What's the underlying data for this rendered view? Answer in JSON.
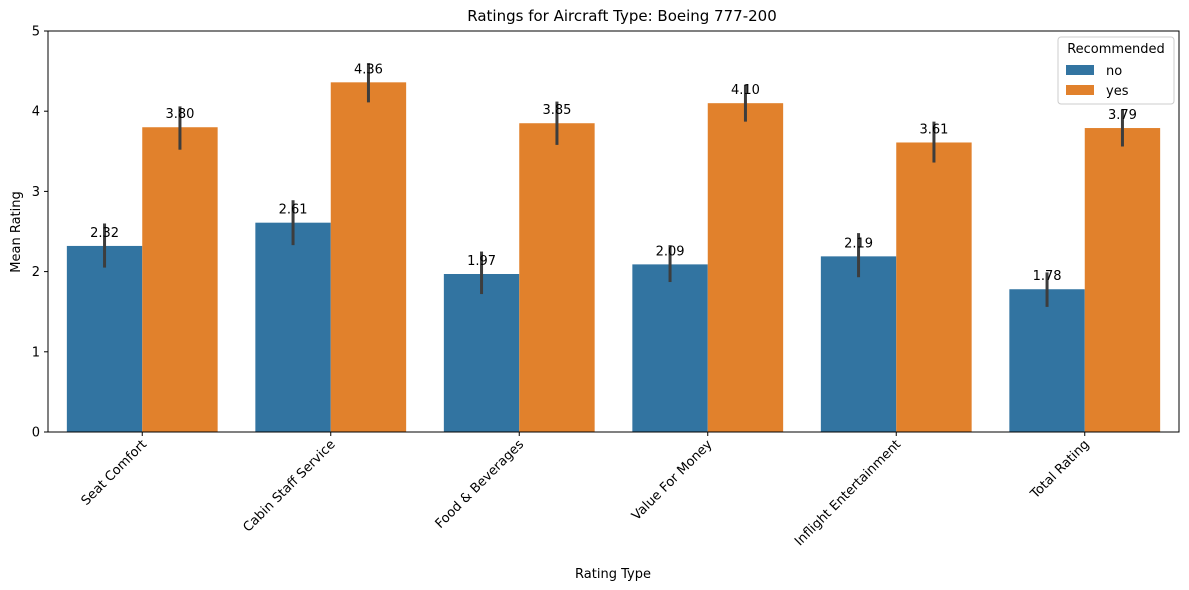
{
  "chart_data": {
    "type": "bar",
    "title": "Ratings for Aircraft Type: Boeing 777-200",
    "xlabel": "Rating Type",
    "ylabel": "Mean Rating",
    "ylim": [
      0,
      5
    ],
    "yticks": [
      0,
      1,
      2,
      3,
      4,
      5
    ],
    "categories": [
      "Seat Comfort",
      "Cabin Staff Service",
      "Food & Beverages",
      "Value For Money",
      "Inflight Entertainment",
      "Total Rating"
    ],
    "series": [
      {
        "name": "no",
        "color": "#3274a1",
        "values": [
          2.32,
          2.61,
          1.97,
          2.09,
          2.19,
          1.78
        ],
        "labels": [
          "2.32",
          "2.61",
          "1.97",
          "2.09",
          "2.19",
          "1.78"
        ],
        "ci_low": [
          2.05,
          2.33,
          1.72,
          1.87,
          1.93,
          1.56
        ],
        "ci_high": [
          2.6,
          2.89,
          2.25,
          2.33,
          2.48,
          1.99
        ]
      },
      {
        "name": "yes",
        "color": "#e1812c",
        "values": [
          3.8,
          4.36,
          3.85,
          4.1,
          3.61,
          3.79
        ],
        "labels": [
          "3.80",
          "4.36",
          "3.85",
          "4.10",
          "3.61",
          "3.79"
        ],
        "ci_low": [
          3.52,
          4.11,
          3.58,
          3.87,
          3.36,
          3.56
        ],
        "ci_high": [
          4.06,
          4.6,
          4.12,
          4.33,
          3.87,
          4.02
        ]
      }
    ],
    "legend": {
      "title": "Recommended",
      "placement": "top-right"
    },
    "x_tick_rotation": 45,
    "grid": false
  }
}
